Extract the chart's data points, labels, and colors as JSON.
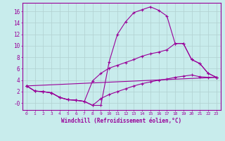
{
  "xlabel": "Windchill (Refroidissement éolien,°C)",
  "bg_color": "#c8ecec",
  "line_color": "#990099",
  "grid_color": "#b0d0d0",
  "xlim": [
    -0.5,
    23.5
  ],
  "ylim": [
    -1.2,
    17.5
  ],
  "xticks": [
    0,
    1,
    2,
    3,
    4,
    5,
    6,
    7,
    8,
    9,
    10,
    11,
    12,
    13,
    14,
    15,
    16,
    17,
    18,
    19,
    20,
    21,
    22,
    23
  ],
  "yticks": [
    0,
    2,
    4,
    6,
    8,
    10,
    12,
    14,
    16
  ],
  "ytick_labels": [
    "-0",
    "2",
    "4",
    "6",
    "8",
    "10",
    "12",
    "14",
    "16"
  ],
  "line1_x": [
    0,
    1,
    2,
    3,
    4,
    5,
    6,
    7,
    8,
    9,
    10,
    11,
    12,
    13,
    14,
    15,
    16,
    17,
    18,
    19,
    20,
    21,
    22,
    23
  ],
  "line1_y": [
    3.0,
    2.1,
    2.0,
    1.8,
    1.0,
    0.6,
    0.5,
    0.3,
    -0.4,
    -0.4,
    7.2,
    12.0,
    14.2,
    15.8,
    16.3,
    16.8,
    16.2,
    15.2,
    10.4,
    10.4,
    7.6,
    6.9,
    5.2,
    4.5
  ],
  "line2_x": [
    0,
    1,
    2,
    3,
    4,
    5,
    6,
    7,
    8,
    9,
    10,
    11,
    12,
    13,
    14,
    15,
    16,
    17,
    18,
    19,
    20,
    21,
    22,
    23
  ],
  "line2_y": [
    3.0,
    2.1,
    2.0,
    1.8,
    1.0,
    0.6,
    0.5,
    0.3,
    3.9,
    5.2,
    6.1,
    6.6,
    7.1,
    7.6,
    8.2,
    8.6,
    8.9,
    9.3,
    10.4,
    10.4,
    7.6,
    6.9,
    5.2,
    4.5
  ],
  "line3_x": [
    0,
    23
  ],
  "line3_y": [
    3.0,
    4.5
  ],
  "line4_x": [
    0,
    1,
    2,
    3,
    4,
    5,
    6,
    7,
    8,
    9,
    10,
    11,
    12,
    13,
    14,
    15,
    16,
    17,
    18,
    19,
    20,
    21,
    22,
    23
  ],
  "line4_y": [
    3.0,
    2.1,
    2.0,
    1.8,
    1.0,
    0.6,
    0.5,
    0.3,
    -0.4,
    0.8,
    1.5,
    2.0,
    2.5,
    3.0,
    3.4,
    3.7,
    4.0,
    4.2,
    4.5,
    4.7,
    4.9,
    4.6,
    4.5,
    4.5
  ]
}
